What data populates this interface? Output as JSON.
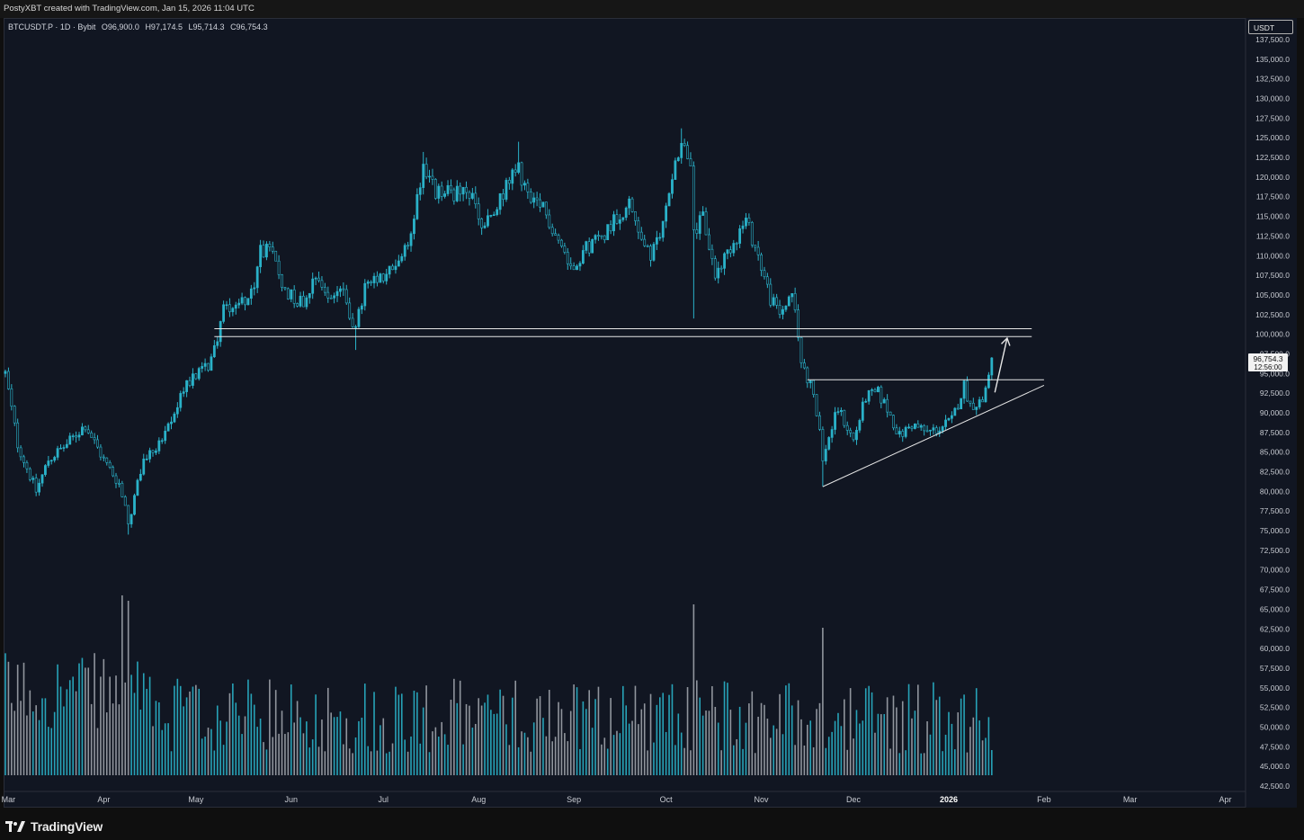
{
  "header": {
    "credit": "PostyXBT created with TradingView.com, Jan 15, 2026 11:04 UTC"
  },
  "symbol_bar": {
    "symbol": "BTCUSDT.P · 1D · Bybit",
    "open": "O96,900.0",
    "high": "H97,174.5",
    "low": "L95,714.3",
    "close": "C96,754.3"
  },
  "currency_button": "USDT",
  "footer": {
    "brand": "TradingView"
  },
  "colors": {
    "background": "#111622",
    "candle": "#2ab2c9",
    "volume_up": "#2ab2c9",
    "volume_down": "#9fa3ab",
    "drawing": "#e6e6e6"
  },
  "chart_data": {
    "type": "candlestick",
    "ylim": [
      42500,
      137500
    ],
    "y_ticks": [
      42500,
      45000,
      47500,
      50000,
      52500,
      55000,
      57500,
      60000,
      62500,
      65000,
      67500,
      70000,
      72500,
      75000,
      77500,
      80000,
      82500,
      85000,
      87500,
      90000,
      92500,
      95000,
      97500,
      100000,
      102500,
      105000,
      107500,
      110000,
      112500,
      115000,
      117500,
      120000,
      122500,
      125000,
      127500,
      130000,
      132500,
      135000,
      137500
    ],
    "y_tick_labels": [
      "42,500.0",
      "45,000.0",
      "47,500.0",
      "50,000.0",
      "52,500.0",
      "55,000.0",
      "57,500.0",
      "60,000.0",
      "62,500.0",
      "65,000.0",
      "67,500.0",
      "70,000.0",
      "72,500.0",
      "75,000.0",
      "77,500.0",
      "80,000.0",
      "82,500.0",
      "85,000.0",
      "87,500.0",
      "90,000.0",
      "92,500.0",
      "95,000.0",
      "97,500.0",
      "100,000.0",
      "102,500.0",
      "105,000.0",
      "107,500.0",
      "110,000.0",
      "112,500.0",
      "115,000.0",
      "117,500.0",
      "120,000.0",
      "122,500.0",
      "125,000.0",
      "127,500.0",
      "130,000.0",
      "132,500.0",
      "135,000.0",
      "137,500.0"
    ],
    "x_labels": [
      {
        "label": "Mar",
        "date": "2025-03-01"
      },
      {
        "label": "Apr",
        "date": "2025-04-01"
      },
      {
        "label": "May",
        "date": "2025-05-01"
      },
      {
        "label": "Jun",
        "date": "2025-06-01"
      },
      {
        "label": "Jul",
        "date": "2025-07-01"
      },
      {
        "label": "Aug",
        "date": "2025-08-01"
      },
      {
        "label": "Sep",
        "date": "2025-09-01"
      },
      {
        "label": "Oct",
        "date": "2025-10-01"
      },
      {
        "label": "Nov",
        "date": "2025-11-01"
      },
      {
        "label": "Dec",
        "date": "2025-12-01"
      },
      {
        "label": "2026",
        "date": "2026-01-01",
        "bold": true
      },
      {
        "label": "Feb",
        "date": "2026-02-01"
      },
      {
        "label": "Mar",
        "date": "2026-03-01"
      },
      {
        "label": "Apr",
        "date": "2026-04-01"
      }
    ],
    "x_range": [
      "2025-02-28",
      "2026-04-07"
    ],
    "last_price": "96,754.3",
    "countdown": "12:56:00",
    "price_path": [
      [
        "2025-02-28",
        95000
      ],
      [
        "2025-03-04",
        86000
      ],
      [
        "2025-03-10",
        80000
      ],
      [
        "2025-03-14",
        84000
      ],
      [
        "2025-03-20",
        86000
      ],
      [
        "2025-03-26",
        88500
      ],
      [
        "2025-04-01",
        84000
      ],
      [
        "2025-04-06",
        81000
      ],
      [
        "2025-04-09",
        76000
      ],
      [
        "2025-04-14",
        84000
      ],
      [
        "2025-04-21",
        87000
      ],
      [
        "2025-04-28",
        94000
      ],
      [
        "2025-05-05",
        96000
      ],
      [
        "2025-05-08",
        99500
      ],
      [
        "2025-05-10",
        103500
      ],
      [
        "2025-05-15",
        104000
      ],
      [
        "2025-05-20",
        105500
      ],
      [
        "2025-05-22",
        111000
      ],
      [
        "2025-05-26",
        110000
      ],
      [
        "2025-05-30",
        105500
      ],
      [
        "2025-06-05",
        104000
      ],
      [
        "2025-06-09",
        108000
      ],
      [
        "2025-06-13",
        104500
      ],
      [
        "2025-06-17",
        106000
      ],
      [
        "2025-06-22",
        100500
      ],
      [
        "2025-06-25",
        106000
      ],
      [
        "2025-07-01",
        107000
      ],
      [
        "2025-07-05",
        109000
      ],
      [
        "2025-07-09",
        111000
      ],
      [
        "2025-07-12",
        117500
      ],
      [
        "2025-07-14",
        121500
      ],
      [
        "2025-07-18",
        118000
      ],
      [
        "2025-07-25",
        118000
      ],
      [
        "2025-07-30",
        117500
      ],
      [
        "2025-08-02",
        113500
      ],
      [
        "2025-08-06",
        115000
      ],
      [
        "2025-08-10",
        119000
      ],
      [
        "2025-08-14",
        121000
      ],
      [
        "2025-08-18",
        116500
      ],
      [
        "2025-08-22",
        116000
      ],
      [
        "2025-08-27",
        112000
      ],
      [
        "2025-08-31",
        108500
      ],
      [
        "2025-09-05",
        111000
      ],
      [
        "2025-09-10",
        112500
      ],
      [
        "2025-09-15",
        115000
      ],
      [
        "2025-09-19",
        116500
      ],
      [
        "2025-09-23",
        112500
      ],
      [
        "2025-09-26",
        109500
      ],
      [
        "2025-09-30",
        114000
      ],
      [
        "2025-10-03",
        120500
      ],
      [
        "2025-10-06",
        124500
      ],
      [
        "2025-10-09",
        122000
      ],
      [
        "2025-10-10",
        112500
      ],
      [
        "2025-10-13",
        115000
      ],
      [
        "2025-10-17",
        107500
      ],
      [
        "2025-10-21",
        110500
      ],
      [
        "2025-10-27",
        114500
      ],
      [
        "2025-10-31",
        110000
      ],
      [
        "2025-11-04",
        104500
      ],
      [
        "2025-11-07",
        102500
      ],
      [
        "2025-11-11",
        105500
      ],
      [
        "2025-11-14",
        96500
      ],
      [
        "2025-11-18",
        92500
      ],
      [
        "2025-11-21",
        84500
      ],
      [
        "2025-11-26",
        90500
      ],
      [
        "2025-12-01",
        86500
      ],
      [
        "2025-12-05",
        92000
      ],
      [
        "2025-12-09",
        92500
      ],
      [
        "2025-12-12",
        90500
      ],
      [
        "2025-12-16",
        87000
      ],
      [
        "2025-12-20",
        88500
      ],
      [
        "2025-12-25",
        87500
      ],
      [
        "2025-12-29",
        88000
      ],
      [
        "2026-01-02",
        89000
      ],
      [
        "2026-01-06",
        93500
      ],
      [
        "2026-01-08",
        91000
      ],
      [
        "2026-01-12",
        91500
      ],
      [
        "2026-01-15",
        96754
      ]
    ],
    "key_lows": [
      {
        "date": "2025-04-09",
        "low": 74500
      },
      {
        "date": "2025-06-22",
        "low": 98000
      },
      {
        "date": "2025-10-10",
        "low": 102000
      },
      {
        "date": "2025-11-21",
        "low": 80600
      }
    ],
    "key_highs": [
      {
        "date": "2025-05-22",
        "high": 112000
      },
      {
        "date": "2025-07-14",
        "high": 123200
      },
      {
        "date": "2025-08-14",
        "high": 124500
      },
      {
        "date": "2025-10-06",
        "high": 126200
      }
    ],
    "drawings": [
      {
        "kind": "horizontal",
        "price": 100700,
        "from": "2025-05-07",
        "to": "2026-01-28"
      },
      {
        "kind": "horizontal",
        "price": 99700,
        "from": "2025-05-07",
        "to": "2026-01-28"
      },
      {
        "kind": "horizontal",
        "price": 94200,
        "from": "2025-11-16",
        "to": "2026-02-01"
      },
      {
        "kind": "trendline",
        "from": [
          "2025-11-21",
          80600
        ],
        "to": [
          "2026-02-01",
          93500
        ]
      },
      {
        "kind": "arrow",
        "from": [
          "2026-01-16",
          92600
        ],
        "to": [
          "2026-01-20",
          99500
        ]
      }
    ],
    "volume_scale": {
      "min": 0,
      "max": 100
    },
    "volume_highlights": [
      {
        "date": "2025-04-07",
        "value": 100
      },
      {
        "date": "2025-04-09",
        "value": 97
      },
      {
        "date": "2025-10-10",
        "value": 95
      },
      {
        "date": "2025-11-21",
        "value": 82
      }
    ]
  }
}
